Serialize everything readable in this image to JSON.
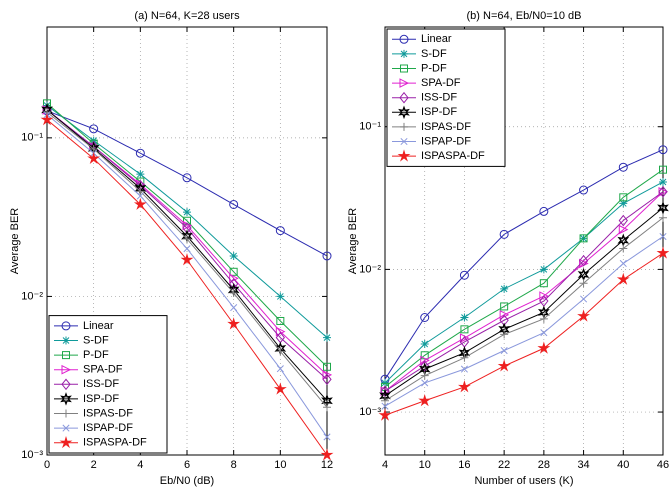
{
  "chart_data": [
    {
      "type": "line",
      "title": "(a) N=64, K=28 users",
      "x_label": "Eb/N0 (dB)",
      "y_label": "Average BER",
      "log_y": true,
      "grid": true,
      "legend": "lower left",
      "x": [
        0,
        2,
        4,
        6,
        8,
        10,
        12
      ],
      "xlim": [
        0,
        12
      ],
      "xticks": [
        0,
        2,
        4,
        6,
        8,
        10,
        12
      ],
      "ylim": [
        0.001,
        0.5
      ],
      "yticks": [
        {
          "value": 0.001,
          "label": "10⁻³"
        },
        {
          "value": 0.01,
          "label": "10⁻²"
        },
        {
          "value": 0.1,
          "label": "10⁻¹"
        }
      ],
      "series": [
        {
          "name": "Linear",
          "color": "#2b2bb0",
          "marker": "circle",
          "values": [
            0.148,
            0.114,
            0.08,
            0.056,
            0.038,
            0.026,
            0.018
          ]
        },
        {
          "name": "S-DF",
          "color": "#0f9a9a",
          "marker": "asterisk",
          "values": [
            0.16,
            0.096,
            0.059,
            0.034,
            0.018,
            0.01,
            0.0055
          ]
        },
        {
          "name": "P-DF",
          "color": "#1fa84a",
          "marker": "square",
          "values": [
            0.165,
            0.092,
            0.053,
            0.03,
            0.0143,
            0.007,
            0.0036
          ]
        },
        {
          "name": "SPA-DF",
          "color": "#e020d0",
          "marker": "triangle-right",
          "values": [
            0.15,
            0.088,
            0.051,
            0.028,
            0.013,
            0.006,
            0.0032
          ]
        },
        {
          "name": "ISS-DF",
          "color": "#9a20a8",
          "marker": "diamond",
          "values": [
            0.15,
            0.088,
            0.05,
            0.027,
            0.012,
            0.0055,
            0.003
          ]
        },
        {
          "name": "ISP-DF",
          "color": "#000000",
          "marker": "hexagram",
          "values": [
            0.15,
            0.086,
            0.048,
            0.024,
            0.011,
            0.0047,
            0.0022
          ]
        },
        {
          "name": "ISPAS-DF",
          "color": "#808080",
          "marker": "plus",
          "values": [
            0.145,
            0.085,
            0.046,
            0.023,
            0.0105,
            0.0045,
            0.002
          ]
        },
        {
          "name": "ISPAP-DF",
          "color": "#8a98dc",
          "marker": "x",
          "values": [
            0.14,
            0.08,
            0.043,
            0.02,
            0.0085,
            0.0035,
            0.0013
          ]
        },
        {
          "name": "ISPASPA-DF",
          "color": "#ee2020",
          "marker": "pentagram",
          "values": [
            0.13,
            0.074,
            0.038,
            0.017,
            0.0067,
            0.0026,
            0.001
          ]
        }
      ]
    },
    {
      "type": "line",
      "title": "(b) N=64, Eb/N0=10 dB",
      "x_label": "Number of users (K)",
      "y_label": "Average BER",
      "log_y": true,
      "grid": true,
      "legend": "upper left",
      "x": [
        4,
        10,
        16,
        22,
        28,
        34,
        40,
        46
      ],
      "xlim": [
        4,
        46
      ],
      "xticks": [
        4,
        10,
        16,
        22,
        28,
        34,
        40,
        46
      ],
      "ylim": [
        0.0005,
        0.5
      ],
      "yticks": [
        {
          "value": 0.001,
          "label": "10⁻³"
        },
        {
          "value": 0.01,
          "label": "10⁻²"
        },
        {
          "value": 0.1,
          "label": "10⁻¹"
        }
      ],
      "series": [
        {
          "name": "Linear",
          "color": "#2b2bb0",
          "marker": "circle",
          "values": [
            0.0017,
            0.0046,
            0.0091,
            0.0176,
            0.0255,
            0.036,
            0.052,
            0.069
          ]
        },
        {
          "name": "S-DF",
          "color": "#0f9a9a",
          "marker": "asterisk",
          "values": [
            0.0016,
            0.003,
            0.0046,
            0.0073,
            0.01,
            0.0165,
            0.029,
            0.041
          ]
        },
        {
          "name": "P-DF",
          "color": "#1fa84a",
          "marker": "square",
          "values": [
            0.0015,
            0.0025,
            0.0038,
            0.0055,
            0.008,
            0.0165,
            0.032,
            0.05
          ]
        },
        {
          "name": "SPA-DF",
          "color": "#e020d0",
          "marker": "triangle-right",
          "values": [
            0.0014,
            0.0023,
            0.0033,
            0.0048,
            0.0065,
            0.011,
            0.019,
            0.035
          ]
        },
        {
          "name": "ISS-DF",
          "color": "#9a20a8",
          "marker": "diamond",
          "values": [
            0.0014,
            0.0021,
            0.0031,
            0.0044,
            0.006,
            0.0115,
            0.022,
            0.035
          ]
        },
        {
          "name": "ISP-DF",
          "color": "#000000",
          "marker": "hexagram",
          "values": [
            0.0013,
            0.002,
            0.0026,
            0.0038,
            0.005,
            0.0092,
            0.016,
            0.027
          ]
        },
        {
          "name": "ISPAS-DF",
          "color": "#808080",
          "marker": "plus",
          "values": [
            0.0012,
            0.0018,
            0.0024,
            0.0035,
            0.0045,
            0.008,
            0.014,
            0.023
          ]
        },
        {
          "name": "ISPAP-DF",
          "color": "#8a98dc",
          "marker": "x",
          "values": [
            0.0011,
            0.0016,
            0.002,
            0.0027,
            0.0036,
            0.0062,
            0.011,
            0.017
          ]
        },
        {
          "name": "ISPASPA-DF",
          "color": "#ee2020",
          "marker": "pentagram",
          "values": [
            0.00095,
            0.0012,
            0.0015,
            0.0021,
            0.0028,
            0.0047,
            0.0085,
            0.013
          ]
        }
      ]
    }
  ]
}
